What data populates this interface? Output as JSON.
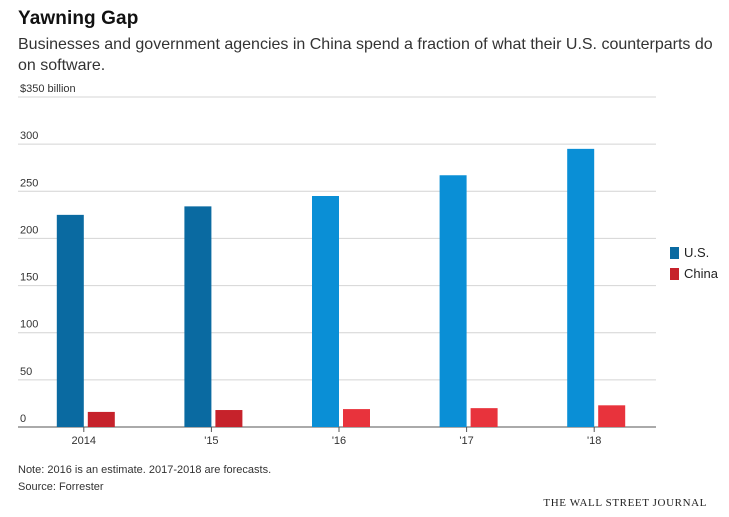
{
  "header": {
    "title": "Yawning Gap",
    "subtitle": "Businesses and government agencies in China spend a fraction of what their U.S. counterparts do on software."
  },
  "chart_data": {
    "type": "bar",
    "title": "Yawning Gap",
    "categories": [
      "2014",
      "'15",
      "'16",
      "'17",
      "'18"
    ],
    "series": [
      {
        "name": "U.S.",
        "values": [
          225,
          234,
          245,
          267,
          295
        ],
        "colors": [
          "#0a6aa1",
          "#0a6aa1",
          "#0a8fd6",
          "#0a8fd6",
          "#0a8fd6"
        ]
      },
      {
        "name": "China",
        "values": [
          16,
          18,
          19,
          20,
          23
        ],
        "colors": [
          "#c6222b",
          "#c6222b",
          "#e8333c",
          "#e8333c",
          "#e8333c"
        ]
      }
    ],
    "ylim": [
      0,
      350
    ],
    "yticks": [
      0,
      50,
      100,
      150,
      200,
      250,
      300,
      350
    ],
    "ytick_labels": [
      "0",
      "50",
      "100",
      "150",
      "200",
      "250",
      "300",
      "$350 billion"
    ],
    "ylabel": "",
    "xlabel": "",
    "grid": true,
    "legend_position": "right",
    "note": "2016 is an estimate. 2017-2018 are forecasts."
  },
  "legend": {
    "items": [
      {
        "label": "U.S.",
        "color": "#0a6aa1"
      },
      {
        "label": "China",
        "color": "#c6222b"
      }
    ]
  },
  "footer": {
    "note": "Note: 2016 is an estimate. 2017-2018 are forecasts.",
    "source": "Source: Forrester",
    "brand": "THE WALL STREET JOURNAL"
  }
}
